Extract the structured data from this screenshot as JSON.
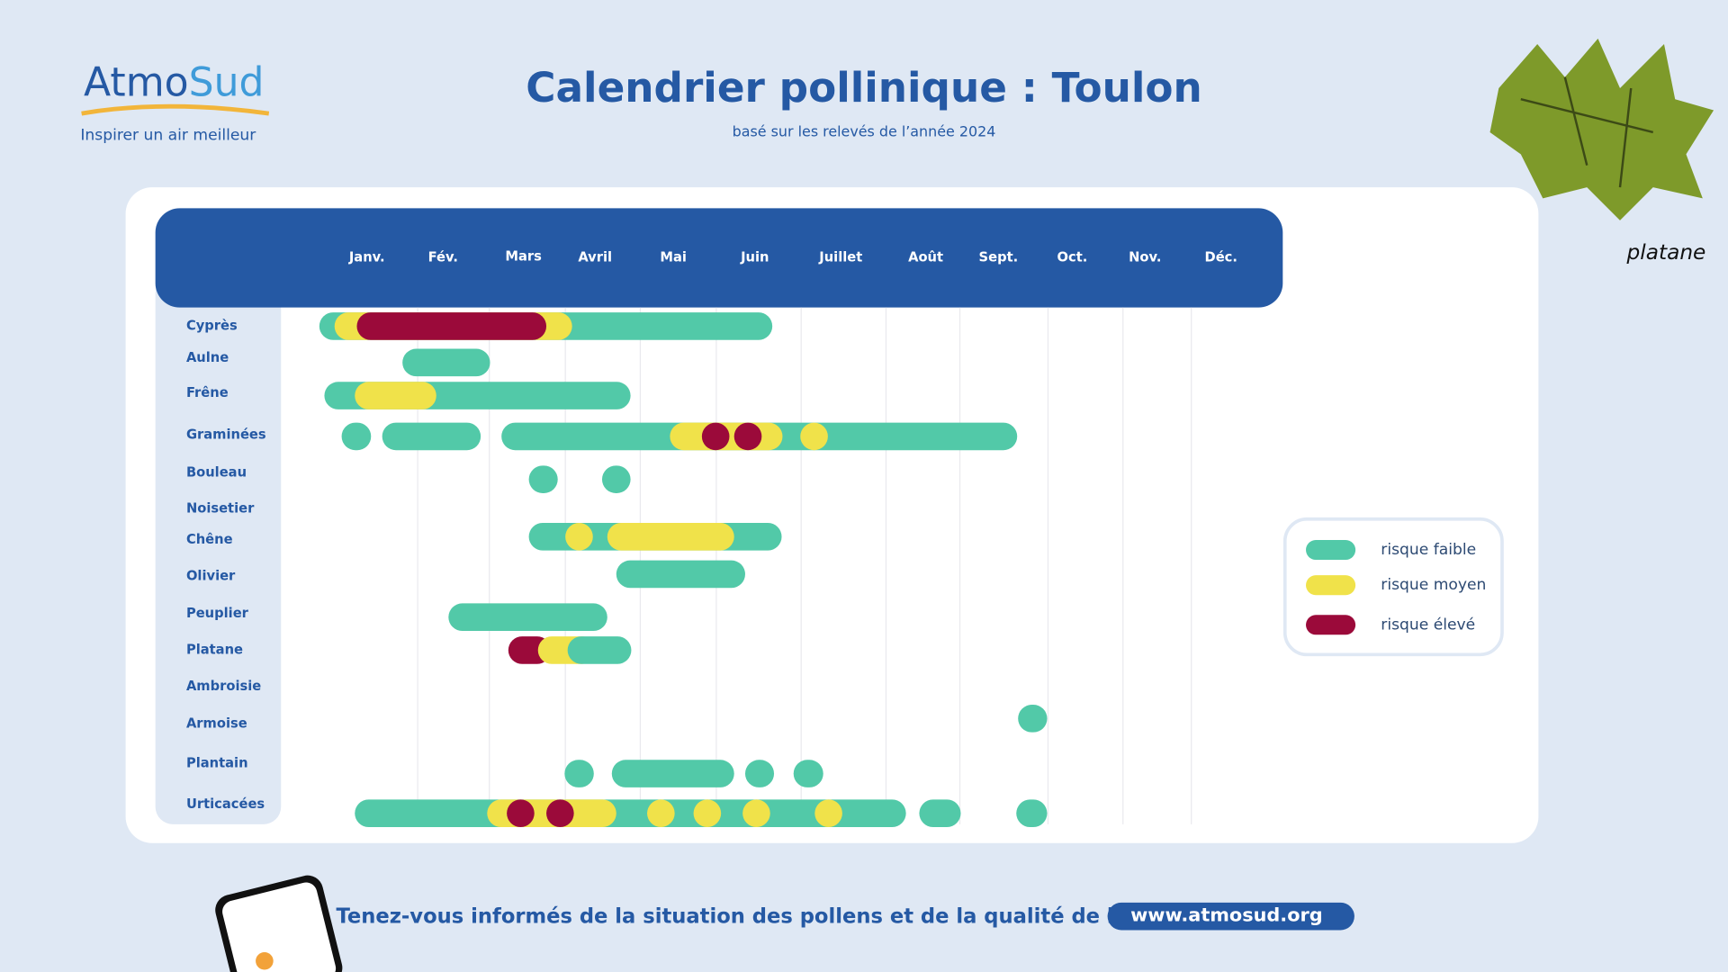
{
  "header": {
    "logo_a": "Atmo",
    "logo_b": "Sud",
    "tagline": "Inspirer un air meilleur",
    "title": "Calendrier pollinique : Toulon",
    "subtitle": "basé sur les relevés de l’année 2024"
  },
  "months": [
    "Janv.",
    "Fév.",
    "Mars",
    "Avril",
    "Mai",
    "Juin",
    "Juillet",
    "Août",
    "Sept.",
    "Oct.",
    "Nov.",
    "Déc."
  ],
  "legend": [
    {
      "label": "risque faible",
      "color": "#52c9a8"
    },
    {
      "label": "risque moyen",
      "color": "#f0e24a"
    },
    {
      "label": "risque élevé",
      "color": "#9b0a3a"
    }
  ],
  "pollens": [
    {
      "name": "Cyprès",
      "periods": [
        {
          "risk": 0,
          "start": 0.03,
          "end": 5.66
        },
        {
          "risk": 1,
          "start": 0.18,
          "end": 3.09
        },
        {
          "risk": 2,
          "start": 0.4,
          "end": 2.75
        }
      ]
    },
    {
      "name": "Aulne",
      "periods": [
        {
          "risk": 0,
          "start": 0.85,
          "end": 2.01
        }
      ]
    },
    {
      "name": "Frêne",
      "periods": [
        {
          "risk": 0,
          "start": 0.08,
          "end": 3.87
        },
        {
          "risk": 1,
          "start": 0.38,
          "end": 1.26
        }
      ]
    },
    {
      "name": "Graminées",
      "periods": [
        {
          "risk": 0,
          "start": 0.25,
          "end": 0.54
        },
        {
          "risk": 0,
          "start": 0.65,
          "end": 1.88
        },
        {
          "risk": 0,
          "start": 2.16,
          "end": 8.65
        },
        {
          "risk": 1,
          "start": 4.39,
          "end": 5.78
        },
        {
          "risk": 2,
          "start": 4.81,
          "end": 5.08
        },
        {
          "risk": 2,
          "start": 5.21,
          "end": 5.47
        },
        {
          "risk": 1,
          "start": 5.99,
          "end": 6.26
        }
      ]
    },
    {
      "name": "Bouleau",
      "periods": [
        {
          "risk": 0,
          "start": 2.52,
          "end": 2.9
        },
        {
          "risk": 0,
          "start": 3.49,
          "end": 3.87
        }
      ]
    },
    {
      "name": "Noisetier",
      "periods": []
    },
    {
      "name": "Chêne",
      "periods": [
        {
          "risk": 0,
          "start": 2.52,
          "end": 5.77
        },
        {
          "risk": 1,
          "start": 3.0,
          "end": 3.32
        },
        {
          "risk": 1,
          "start": 3.56,
          "end": 5.21
        }
      ]
    },
    {
      "name": "Olivier",
      "periods": [
        {
          "risk": 0,
          "start": 3.68,
          "end": 5.34
        }
      ]
    },
    {
      "name": "Peuplier",
      "periods": [
        {
          "risk": 0,
          "start": 1.43,
          "end": 3.56
        }
      ]
    },
    {
      "name": "Platane",
      "periods": [
        {
          "risk": 2,
          "start": 2.25,
          "end": 2.81
        },
        {
          "risk": 1,
          "start": 2.64,
          "end": 3.4
        },
        {
          "risk": 0,
          "start": 3.03,
          "end": 3.88
        }
      ]
    },
    {
      "name": "Ambroisie",
      "periods": []
    },
    {
      "name": "Armoise",
      "periods": [
        {
          "risk": 0,
          "start": 8.66,
          "end": 8.99
        }
      ]
    },
    {
      "name": "Plantain",
      "periods": [
        {
          "risk": 0,
          "start": 2.99,
          "end": 3.38
        },
        {
          "risk": 0,
          "start": 3.62,
          "end": 5.21
        },
        {
          "risk": 0,
          "start": 5.34,
          "end": 5.68
        },
        {
          "risk": 0,
          "start": 5.91,
          "end": 6.26
        }
      ]
    },
    {
      "name": "Urticacées",
      "periods": [
        {
          "risk": 0,
          "start": 0.38,
          "end": 7.27
        },
        {
          "risk": 1,
          "start": 1.97,
          "end": 3.68
        },
        {
          "risk": 2,
          "start": 2.23,
          "end": 2.51
        },
        {
          "risk": 2,
          "start": 2.75,
          "end": 3.03
        },
        {
          "risk": 1,
          "start": 4.09,
          "end": 4.41
        },
        {
          "risk": 1,
          "start": 4.7,
          "end": 5.0
        },
        {
          "risk": 1,
          "start": 5.31,
          "end": 5.58
        },
        {
          "risk": 1,
          "start": 6.16,
          "end": 6.43
        },
        {
          "risk": 0,
          "start": 7.45,
          "end": 8.01
        },
        {
          "risk": 0,
          "start": 8.64,
          "end": 8.99
        }
      ]
    }
  ],
  "photo_caption": "platane",
  "footer": {
    "text": "Tenez-vous informés de la situation des pollens et de la qualité de l’air sur :",
    "link": "www.atmosud.org"
  }
}
